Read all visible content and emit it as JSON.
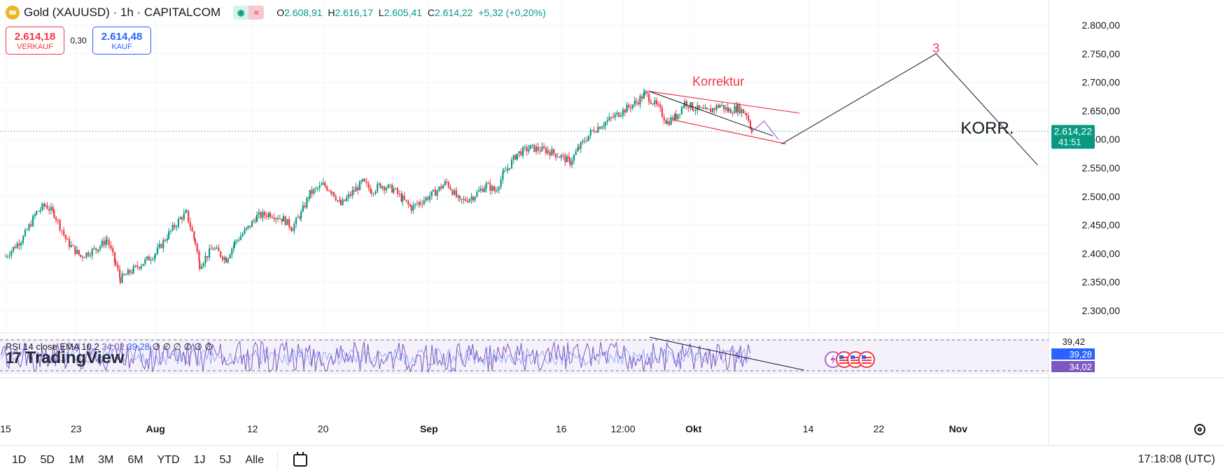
{
  "header": {
    "symbol": "Gold (XAUUSD) · 1h · CAPITALCOM",
    "ohlc": {
      "o_label": "O",
      "o": "2.608,91",
      "h_label": "H",
      "h": "2.616,17",
      "l_label": "L",
      "l": "2.605,41",
      "c_label": "C",
      "c": "2.614,22",
      "change": "+5,32 (+0,20%)"
    },
    "badge_left": "◉",
    "badge_right": "≈"
  },
  "trade": {
    "sell_price": "2.614,18",
    "sell_label": "VERKAUF",
    "spread": "0,30",
    "buy_price": "2.614,48",
    "buy_label": "KAUF"
  },
  "rsi": {
    "name": "RSI 14 close EMA 10 2",
    "value1": "34,02",
    "value2": "39,28",
    "extra": "∅ ∅ ∅ ∅ ∅ ∅"
  },
  "logo": {
    "text": "TradingView",
    "mark": "17"
  },
  "bottom": {
    "ranges": [
      "1D",
      "5D",
      "1M",
      "3M",
      "6M",
      "YTD",
      "1J",
      "5J",
      "Alle"
    ],
    "clock": "17:18:08 (UTC)"
  },
  "colors": {
    "up": "#089981",
    "down": "#f23645",
    "rsi": "#7e57c2",
    "rsi_ma": "#2962ff",
    "annotation": "#f23645"
  },
  "chart_data": {
    "type": "candlestick",
    "symbol": "XAUUSD",
    "interval": "1h",
    "y_axis": {
      "ticks": [
        2800,
        2750,
        2700,
        2650,
        2600,
        2550,
        2500,
        2450,
        2400,
        2350,
        2300
      ],
      "tick_labels": [
        "2.800,00",
        "2.750,00",
        "2.700,00",
        "2.650,00",
        "2.600,00",
        "2.550,00",
        "2.500,00",
        "2.450,00",
        "2.400,00",
        "2.350,00",
        "2.300,00"
      ],
      "ylim": [
        2280,
        2820
      ]
    },
    "x_axis": {
      "tick_labels": [
        "15",
        "23",
        "Aug",
        "12",
        "20",
        "Sep",
        "16",
        "12:00",
        "Okt",
        "14",
        "22",
        "Nov"
      ],
      "tick_days": [
        0,
        8,
        17,
        28,
        36,
        48,
        63,
        70,
        78,
        91,
        99,
        108
      ],
      "xlim": [
        0,
        115
      ]
    },
    "current_price": {
      "label": "2.614,22",
      "countdown": "41:51",
      "value": 2614.22
    },
    "price_path": [
      [
        0,
        2395
      ],
      [
        2,
        2428
      ],
      [
        3.5,
        2472
      ],
      [
        4.5,
        2485
      ],
      [
        5.5,
        2470
      ],
      [
        7,
        2420
      ],
      [
        8.5,
        2395
      ],
      [
        10.5,
        2410
      ],
      [
        11.5,
        2425
      ],
      [
        12.5,
        2380
      ],
      [
        13,
        2355
      ],
      [
        14.5,
        2372
      ],
      [
        17,
        2400
      ],
      [
        18.5,
        2435
      ],
      [
        20,
        2465
      ],
      [
        20.5,
        2470
      ],
      [
        21.5,
        2420
      ],
      [
        22,
        2380
      ],
      [
        23.5,
        2410
      ],
      [
        25,
        2390
      ],
      [
        26,
        2420
      ],
      [
        27.5,
        2445
      ],
      [
        28.5,
        2465
      ],
      [
        30,
        2470
      ],
      [
        31.5,
        2460
      ],
      [
        32.5,
        2445
      ],
      [
        33.5,
        2470
      ],
      [
        34.5,
        2505
      ],
      [
        36,
        2520
      ],
      [
        37,
        2510
      ],
      [
        38,
        2485
      ],
      [
        39.5,
        2510
      ],
      [
        40.5,
        2525
      ],
      [
        41.5,
        2510
      ],
      [
        42.5,
        2520
      ],
      [
        44,
        2512
      ],
      [
        45,
        2495
      ],
      [
        46,
        2480
      ],
      [
        47,
        2490
      ],
      [
        48.5,
        2505
      ],
      [
        50,
        2525
      ],
      [
        51.5,
        2490
      ],
      [
        53,
        2500
      ],
      [
        54.5,
        2520
      ],
      [
        55.5,
        2510
      ],
      [
        56.5,
        2540
      ],
      [
        58,
        2575
      ],
      [
        59.5,
        2585
      ],
      [
        61.5,
        2580
      ],
      [
        63,
        2570
      ],
      [
        64,
        2560
      ],
      [
        65,
        2585
      ],
      [
        66.5,
        2615
      ],
      [
        68,
        2630
      ],
      [
        70,
        2650
      ],
      [
        71.5,
        2665
      ],
      [
        72.5,
        2680
      ],
      [
        74,
        2655
      ],
      [
        75,
        2630
      ],
      [
        76,
        2640
      ],
      [
        77,
        2665
      ],
      [
        78,
        2655
      ],
      [
        79.5,
        2648
      ],
      [
        81,
        2660
      ],
      [
        82,
        2650
      ],
      [
        83,
        2655
      ],
      [
        84,
        2645
      ],
      [
        84.6,
        2614.22
      ]
    ],
    "rsi_levels": {
      "upper": "39,42",
      "lower": "34,02",
      "ma_label": "39,28"
    },
    "annotations": {
      "correction_label": "Korrektur",
      "wave_label": "3",
      "korr_label": "KORR.",
      "channel_upper": [
        [
          73,
          2684
        ],
        [
          90,
          2646
        ]
      ],
      "channel_lower": [
        [
          76,
          2633
        ],
        [
          88.5,
          2592
        ]
      ],
      "trend_line": [
        [
          73,
          2684
        ],
        [
          87,
          2606
        ]
      ],
      "projection": [
        [
          88,
          2592
        ],
        [
          105.5,
          2750
        ],
        [
          117,
          2555
        ]
      ],
      "projection_inner": [
        [
          84.5,
          2612
        ],
        [
          86,
          2632
        ],
        [
          87.6,
          2600
        ]
      ],
      "event_icons": [
        "lightning-icon",
        "us-flag-icon",
        "us-flag-icon",
        "us-flag-icon"
      ]
    }
  }
}
